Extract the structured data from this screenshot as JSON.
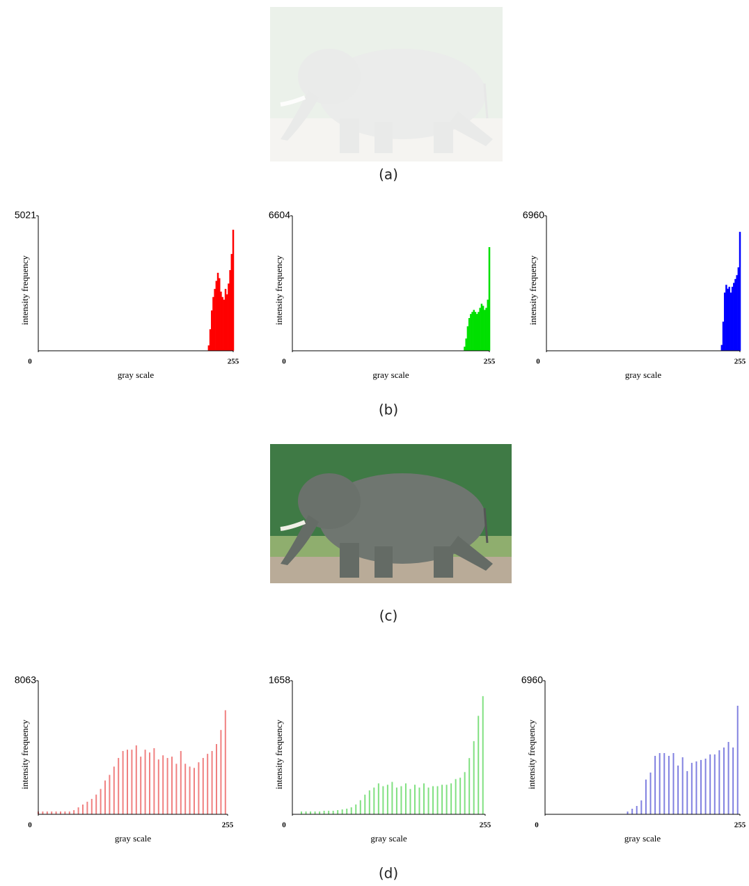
{
  "captions": [
    "(a)",
    "(b)",
    "(c)",
    "(d)"
  ],
  "chart_data": [
    {
      "type": "bar",
      "x_label": "gray scale",
      "y_label": "intensity frequency",
      "color": "#ff0000",
      "xlim": [
        0,
        255
      ],
      "ylim": [
        0,
        5021
      ],
      "xticks": [
        0,
        255
      ],
      "yticks": [
        5021
      ],
      "x": [
        223,
        225,
        227,
        229,
        231,
        233,
        235,
        237,
        239,
        241,
        243,
        245,
        247,
        249,
        251,
        253,
        255
      ],
      "values": [
        200,
        800,
        1500,
        2000,
        2300,
        2600,
        2900,
        2700,
        2200,
        2000,
        1900,
        2300,
        2100,
        2500,
        3000,
        3600,
        4500
      ]
    },
    {
      "type": "bar",
      "x_label": "gray scale",
      "y_label": "intensity frequency",
      "color": "#00e000",
      "xlim": [
        0,
        255
      ],
      "ylim": [
        0,
        6604
      ],
      "xticks": [
        0,
        255
      ],
      "yticks": [
        6604
      ],
      "x": [
        223,
        225,
        227,
        229,
        231,
        233,
        235,
        237,
        239,
        241,
        243,
        245,
        247,
        249,
        251,
        253,
        255
      ],
      "values": [
        200,
        600,
        1200,
        1600,
        1800,
        1900,
        2000,
        1900,
        1800,
        1900,
        2100,
        2300,
        2200,
        2000,
        2100,
        2500,
        5070
      ]
    },
    {
      "type": "bar",
      "x_label": "gray scale",
      "y_label": "intensity frequency",
      "color": "#0000ff",
      "xlim": [
        0,
        255
      ],
      "ylim": [
        0,
        6960
      ],
      "xticks": [
        0,
        255
      ],
      "yticks": [
        6960
      ],
      "x": [
        231,
        233,
        235,
        237,
        239,
        241,
        243,
        245,
        247,
        249,
        251,
        253,
        255
      ],
      "values": [
        300,
        1500,
        3000,
        3400,
        3200,
        3300,
        3000,
        3300,
        3500,
        3700,
        3900,
        4300,
        6130
      ]
    },
    {
      "type": "bar",
      "x_label": "gray scale",
      "y_label": "intensity frequency",
      "color": "#f08080",
      "xlim": [
        0,
        255
      ],
      "ylim": [
        0,
        8063
      ],
      "xticks": [
        0,
        255
      ],
      "yticks": [
        8063
      ],
      "x": [
        0,
        6,
        12,
        18,
        24,
        30,
        36,
        42,
        48,
        54,
        60,
        66,
        72,
        78,
        84,
        90,
        96,
        102,
        108,
        114,
        120,
        126,
        132,
        138,
        144,
        150,
        156,
        162,
        168,
        174,
        180,
        186,
        192,
        198,
        204,
        210,
        216,
        222,
        228,
        234,
        240,
        246,
        252
      ],
      "values": [
        170,
        170,
        170,
        170,
        170,
        170,
        170,
        170,
        250,
        420,
        590,
        760,
        930,
        1190,
        1530,
        2040,
        2380,
        2880,
        3400,
        3820,
        3900,
        3900,
        4160,
        3480,
        3900,
        3730,
        3990,
        3310,
        3560,
        3400,
        3480,
        3050,
        3820,
        3050,
        2880,
        2800,
        3140,
        3400,
        3650,
        3820,
        4240,
        5090,
        6280
      ]
    },
    {
      "type": "bar",
      "x_label": "gray scale",
      "y_label": "intensity frequency",
      "color": "#80e080",
      "xlim": [
        0,
        255
      ],
      "ylim": [
        0,
        1658
      ],
      "xticks": [
        0,
        255
      ],
      "yticks": [
        1658
      ],
      "x": [
        12,
        18,
        24,
        30,
        36,
        42,
        48,
        54,
        60,
        66,
        72,
        78,
        84,
        90,
        96,
        102,
        108,
        114,
        120,
        126,
        132,
        138,
        144,
        150,
        156,
        162,
        168,
        174,
        180,
        186,
        192,
        198,
        204,
        210,
        216,
        222,
        228,
        234,
        240,
        246,
        252
      ],
      "values": [
        35,
        35,
        35,
        35,
        35,
        44,
        44,
        44,
        52,
        61,
        70,
        87,
        122,
        175,
        244,
        297,
        332,
        384,
        349,
        367,
        402,
        332,
        349,
        384,
        314,
        367,
        332,
        384,
        332,
        349,
        349,
        367,
        367,
        384,
        437,
        454,
        524,
        698,
        908,
        1222,
        1466
      ]
    },
    {
      "type": "bar",
      "x_label": "gray scale",
      "y_label": "intensity frequency",
      "color": "#8080e0",
      "xlim": [
        0,
        255
      ],
      "ylim": [
        0,
        6960
      ],
      "xticks": [
        0,
        255
      ],
      "yticks": [
        6960
      ],
      "x": [
        108,
        114,
        120,
        126,
        132,
        138,
        144,
        150,
        156,
        162,
        168,
        174,
        180,
        186,
        192,
        198,
        204,
        210,
        216,
        222,
        228,
        234,
        240,
        246,
        252
      ],
      "values": [
        145,
        290,
        435,
        725,
        1810,
        2175,
        3045,
        3190,
        3190,
        3045,
        3190,
        2540,
        2970,
        2250,
        2680,
        2755,
        2830,
        2900,
        3120,
        3120,
        3335,
        3480,
        3770,
        3480,
        5655
      ]
    }
  ]
}
